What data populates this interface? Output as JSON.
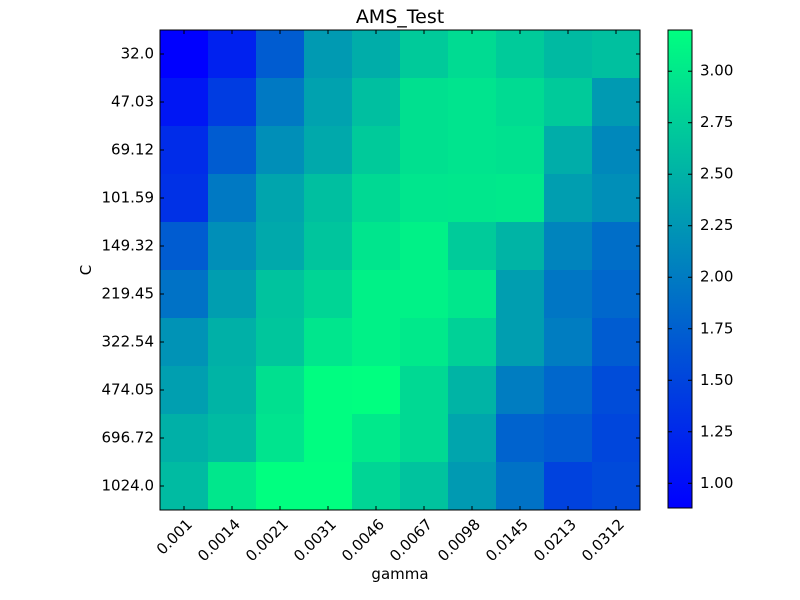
{
  "chart_data": {
    "type": "heatmap",
    "title": "AMS_Test",
    "xlabel": "gamma",
    "ylabel": "C",
    "x_categories": [
      "0.001",
      "0.0014",
      "0.0021",
      "0.0031",
      "0.0046",
      "0.0067",
      "0.0098",
      "0.0145",
      "0.0213",
      "0.0312"
    ],
    "y_categories": [
      "32.0",
      "47.03",
      "69.12",
      "101.59",
      "149.32",
      "219.45",
      "322.54",
      "474.05",
      "696.72",
      "1024.0"
    ],
    "values": [
      [
        0.88,
        1.18,
        1.72,
        2.28,
        2.45,
        2.72,
        2.87,
        2.73,
        2.57,
        2.63
      ],
      [
        1.08,
        1.43,
        1.98,
        2.35,
        2.62,
        2.92,
        2.95,
        2.87,
        2.72,
        2.28
      ],
      [
        1.28,
        1.72,
        2.18,
        2.42,
        2.72,
        2.92,
        2.95,
        2.93,
        2.45,
        2.12
      ],
      [
        1.33,
        1.98,
        2.38,
        2.62,
        2.85,
        2.97,
        2.98,
        3.0,
        2.32,
        2.18
      ],
      [
        1.72,
        2.18,
        2.42,
        2.67,
        2.96,
        3.07,
        2.73,
        2.52,
        2.08,
        1.88
      ],
      [
        1.92,
        2.32,
        2.65,
        2.82,
        3.07,
        3.08,
        2.98,
        2.32,
        1.95,
        1.82
      ],
      [
        2.22,
        2.48,
        2.68,
        2.97,
        3.07,
        3.0,
        2.78,
        2.32,
        2.02,
        1.72
      ],
      [
        2.33,
        2.52,
        2.92,
        3.18,
        3.2,
        2.85,
        2.52,
        2.02,
        1.82,
        1.57
      ],
      [
        2.48,
        2.58,
        2.95,
        3.18,
        3.0,
        2.85,
        2.38,
        1.78,
        1.7,
        1.52
      ],
      [
        2.58,
        2.98,
        3.2,
        3.2,
        2.82,
        2.65,
        2.28,
        1.92,
        1.48,
        1.55
      ]
    ],
    "colorbar": {
      "vmin": 0.88,
      "vmax": 3.2,
      "ticks": [
        "1.00",
        "1.25",
        "1.50",
        "1.75",
        "2.00",
        "2.25",
        "2.50",
        "2.75",
        "3.00"
      ],
      "colormap": "winter",
      "color_low": "#0000ff",
      "color_high": "#00ff80"
    },
    "x_tick_rotation": "45°",
    "grid": false
  }
}
